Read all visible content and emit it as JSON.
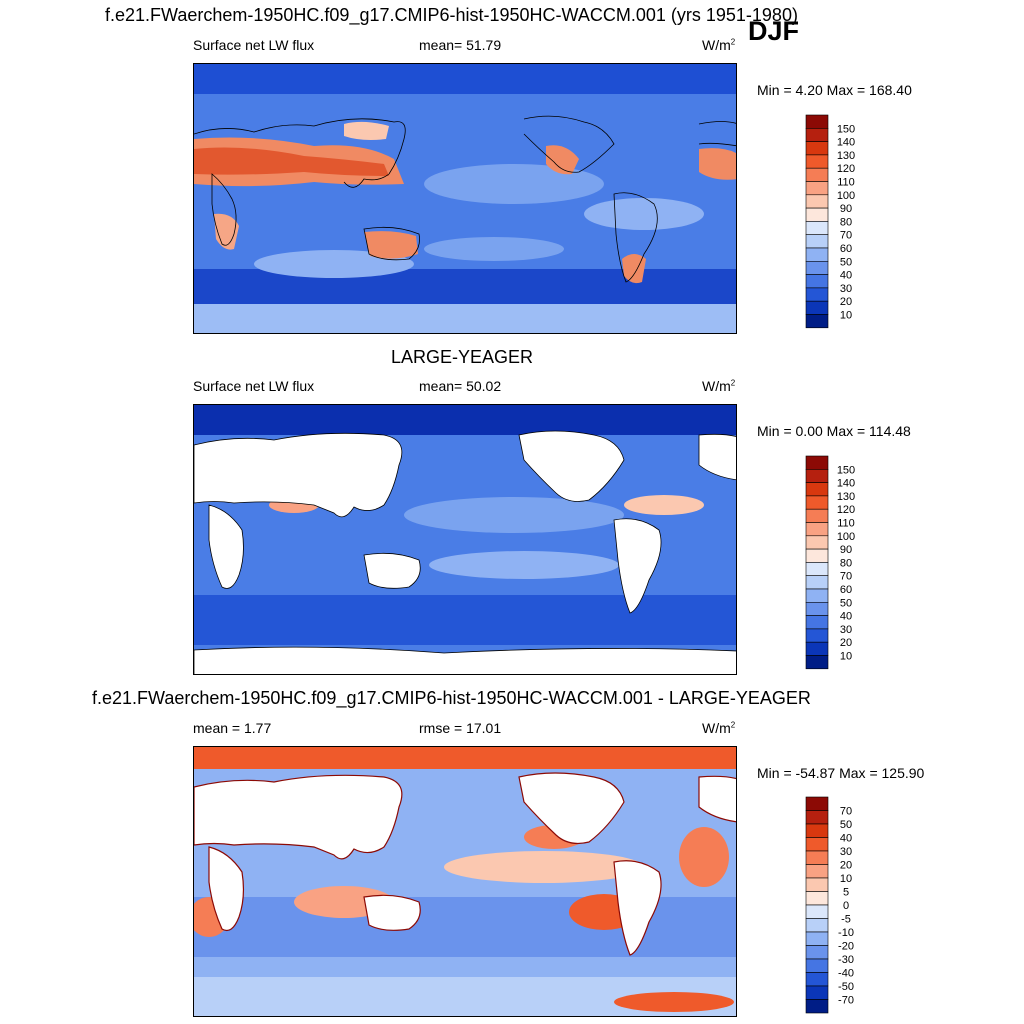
{
  "season": "DJF",
  "colors": {
    "ocean_base": "#3d6fe0",
    "land": "#ffffff",
    "coast": "#000000"
  },
  "panels": [
    {
      "id": "model",
      "title": "f.e21.FWaerchem-1950HC.f09_g17.CMIP6-hist-1950HC-WACCM.001 (yrs 1951-1980)",
      "variable": "Surface net LW flux",
      "stat_label": "mean=  51.79",
      "units_base": "W/m",
      "units_exp": "2",
      "minmax": "Min =   4.20 Max = 168.40",
      "colorbar": {
        "labels": [
          "150",
          "140",
          "130",
          "120",
          "110",
          "100",
          "90",
          "80",
          "70",
          "60",
          "50",
          "40",
          "30",
          "20",
          "10"
        ],
        "colors": [
          "#8c0a05",
          "#b5200f",
          "#d8380f",
          "#ef5a2b",
          "#f57d55",
          "#f9a283",
          "#fbc8b0",
          "#fde7dc",
          "#dbe7fb",
          "#b8d0f8",
          "#8fb2f3",
          "#6a93ec",
          "#4575e3",
          "#2456d6",
          "#0b36b8",
          "#001d86"
        ]
      }
    },
    {
      "id": "obs",
      "title": "LARGE-YEAGER",
      "variable": "Surface net LW flux",
      "stat_label": "mean=  50.02",
      "units_base": "W/m",
      "units_exp": "2",
      "minmax": "Min =   0.00 Max = 114.48",
      "colorbar": {
        "labels": [
          "150",
          "140",
          "130",
          "120",
          "110",
          "100",
          "90",
          "80",
          "70",
          "60",
          "50",
          "40",
          "30",
          "20",
          "10"
        ],
        "colors": [
          "#8c0a05",
          "#b5200f",
          "#d8380f",
          "#ef5a2b",
          "#f57d55",
          "#f9a283",
          "#fbc8b0",
          "#fde7dc",
          "#dbe7fb",
          "#b8d0f8",
          "#8fb2f3",
          "#6a93ec",
          "#4575e3",
          "#2456d6",
          "#0b36b8",
          "#001d86"
        ]
      }
    },
    {
      "id": "diff",
      "title": "f.e21.FWaerchem-1950HC.f09_g17.CMIP6-hist-1950HC-WACCM.001 - LARGE-YEAGER",
      "variable": "mean =   1.77",
      "stat_label": "rmse =  17.01",
      "units_base": "W/m",
      "units_exp": "2",
      "minmax": "Min = -54.87 Max = 125.90",
      "colorbar": {
        "labels": [
          "70",
          "50",
          "40",
          "30",
          "20",
          "10",
          "5",
          "0",
          "-5",
          "-10",
          "-20",
          "-30",
          "-40",
          "-50",
          "-70"
        ],
        "colors": [
          "#8c0a05",
          "#b5200f",
          "#d8380f",
          "#ef5a2b",
          "#f57d55",
          "#f9a283",
          "#fbc8b0",
          "#fde7dc",
          "#dbe7fb",
          "#b8d0f8",
          "#8fb2f3",
          "#6a93ec",
          "#4575e3",
          "#2456d6",
          "#0b36b8",
          "#001d86"
        ]
      }
    }
  ]
}
